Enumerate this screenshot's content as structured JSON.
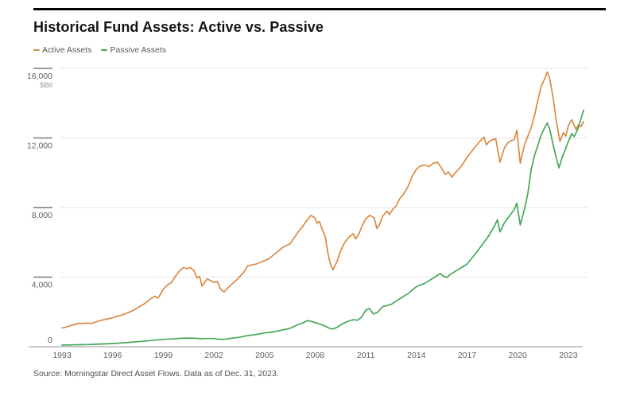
{
  "header": {
    "title": "Historical Fund Assets: Active vs. Passive"
  },
  "legend": {
    "items": [
      {
        "label": "Active Assets",
        "color": "#DB8A43"
      },
      {
        "label": "Passive Assets",
        "color": "#46A758"
      }
    ]
  },
  "footer": {
    "source": "Source: Morningstar Direct Asset Flows. Data as of Dec. 31, 2023."
  },
  "chart_data": {
    "type": "line",
    "title": "Historical Fund Assets: Active vs. Passive",
    "xlabel": "",
    "ylabel": "$Bil",
    "unit_label": "$Bil",
    "ylim": [
      0,
      16000
    ],
    "xlim": [
      1993,
      2024.2
    ],
    "yticks": [
      0,
      4000,
      8000,
      12000,
      16000
    ],
    "ytick_labels": [
      "0",
      "4,000",
      "8,000",
      "12,000",
      "16,000"
    ],
    "xticks": [
      1993,
      1996,
      1999,
      2002,
      2005,
      2008,
      2011,
      2014,
      2017,
      2020,
      2023
    ],
    "xtick_labels": [
      "1993",
      "1996",
      "1999",
      "2002",
      "2005",
      "2008",
      "2011",
      "2014",
      "2017",
      "2020",
      "2023"
    ],
    "grid": "horizontal",
    "legend_position": "top-left",
    "series": [
      {
        "name": "Active Assets",
        "color": "#DB8A43",
        "points": [
          [
            1993.0,
            1080
          ],
          [
            1993.25,
            1130
          ],
          [
            1993.5,
            1210
          ],
          [
            1993.75,
            1280
          ],
          [
            1994.0,
            1350
          ],
          [
            1994.25,
            1330
          ],
          [
            1994.5,
            1360
          ],
          [
            1994.75,
            1340
          ],
          [
            1995.0,
            1420
          ],
          [
            1995.25,
            1500
          ],
          [
            1995.5,
            1560
          ],
          [
            1995.75,
            1610
          ],
          [
            1996.0,
            1660
          ],
          [
            1996.25,
            1750
          ],
          [
            1996.5,
            1800
          ],
          [
            1996.75,
            1890
          ],
          [
            1997.0,
            2000
          ],
          [
            1997.25,
            2100
          ],
          [
            1997.5,
            2250
          ],
          [
            1997.75,
            2380
          ],
          [
            1998.0,
            2550
          ],
          [
            1998.25,
            2750
          ],
          [
            1998.5,
            2900
          ],
          [
            1998.7,
            2800
          ],
          [
            1999.0,
            3300
          ],
          [
            1999.25,
            3550
          ],
          [
            1999.5,
            3700
          ],
          [
            1999.75,
            4100
          ],
          [
            2000.0,
            4400
          ],
          [
            2000.2,
            4550
          ],
          [
            2000.4,
            4480
          ],
          [
            2000.6,
            4550
          ],
          [
            2000.8,
            4400
          ],
          [
            2001.0,
            3950
          ],
          [
            2001.15,
            4050
          ],
          [
            2001.3,
            3480
          ],
          [
            2001.6,
            3900
          ],
          [
            2001.8,
            3800
          ],
          [
            2002.0,
            3700
          ],
          [
            2002.2,
            3750
          ],
          [
            2002.4,
            3300
          ],
          [
            2002.6,
            3150
          ],
          [
            2002.8,
            3350
          ],
          [
            2003.0,
            3550
          ],
          [
            2003.25,
            3750
          ],
          [
            2003.5,
            4000
          ],
          [
            2003.75,
            4250
          ],
          [
            2004.0,
            4650
          ],
          [
            2004.25,
            4700
          ],
          [
            2004.5,
            4750
          ],
          [
            2004.75,
            4850
          ],
          [
            2005.0,
            4950
          ],
          [
            2005.25,
            5050
          ],
          [
            2005.5,
            5250
          ],
          [
            2005.75,
            5450
          ],
          [
            2006.0,
            5650
          ],
          [
            2006.25,
            5800
          ],
          [
            2006.5,
            5900
          ],
          [
            2006.75,
            6250
          ],
          [
            2007.0,
            6600
          ],
          [
            2007.25,
            6900
          ],
          [
            2007.5,
            7250
          ],
          [
            2007.75,
            7550
          ],
          [
            2008.0,
            7400
          ],
          [
            2008.1,
            7100
          ],
          [
            2008.25,
            7200
          ],
          [
            2008.4,
            6800
          ],
          [
            2008.6,
            6300
          ],
          [
            2008.75,
            5400
          ],
          [
            2008.9,
            4750
          ],
          [
            2009.05,
            4420
          ],
          [
            2009.3,
            4900
          ],
          [
            2009.5,
            5500
          ],
          [
            2009.75,
            6000
          ],
          [
            2010.0,
            6300
          ],
          [
            2010.25,
            6500
          ],
          [
            2010.4,
            6200
          ],
          [
            2010.6,
            6500
          ],
          [
            2010.8,
            7000
          ],
          [
            2011.0,
            7350
          ],
          [
            2011.25,
            7550
          ],
          [
            2011.5,
            7400
          ],
          [
            2011.65,
            6800
          ],
          [
            2011.8,
            7000
          ],
          [
            2012.0,
            7500
          ],
          [
            2012.25,
            7800
          ],
          [
            2012.4,
            7600
          ],
          [
            2012.6,
            7900
          ],
          [
            2012.8,
            8100
          ],
          [
            2013.0,
            8500
          ],
          [
            2013.25,
            8800
          ],
          [
            2013.5,
            9200
          ],
          [
            2013.75,
            9800
          ],
          [
            2014.0,
            10200
          ],
          [
            2014.25,
            10400
          ],
          [
            2014.5,
            10450
          ],
          [
            2014.75,
            10350
          ],
          [
            2015.0,
            10550
          ],
          [
            2015.25,
            10600
          ],
          [
            2015.5,
            10250
          ],
          [
            2015.7,
            9900
          ],
          [
            2015.9,
            10050
          ],
          [
            2016.1,
            9750
          ],
          [
            2016.3,
            10000
          ],
          [
            2016.5,
            10200
          ],
          [
            2016.75,
            10500
          ],
          [
            2017.0,
            10900
          ],
          [
            2017.25,
            11200
          ],
          [
            2017.5,
            11500
          ],
          [
            2017.75,
            11800
          ],
          [
            2018.0,
            12050
          ],
          [
            2018.15,
            11600
          ],
          [
            2018.3,
            11800
          ],
          [
            2018.5,
            11900
          ],
          [
            2018.7,
            11950
          ],
          [
            2018.95,
            10600
          ],
          [
            2019.2,
            11400
          ],
          [
            2019.4,
            11700
          ],
          [
            2019.6,
            11850
          ],
          [
            2019.8,
            11900
          ],
          [
            2019.95,
            12450
          ],
          [
            2020.15,
            10550
          ],
          [
            2020.4,
            11600
          ],
          [
            2020.6,
            12100
          ],
          [
            2020.8,
            12600
          ],
          [
            2021.0,
            13300
          ],
          [
            2021.2,
            14200
          ],
          [
            2021.4,
            15000
          ],
          [
            2021.6,
            15400
          ],
          [
            2021.75,
            15800
          ],
          [
            2021.9,
            15400
          ],
          [
            2022.1,
            14300
          ],
          [
            2022.3,
            12900
          ],
          [
            2022.5,
            11800
          ],
          [
            2022.7,
            12300
          ],
          [
            2022.85,
            12100
          ],
          [
            2023.0,
            12700
          ],
          [
            2023.2,
            13050
          ],
          [
            2023.45,
            12500
          ],
          [
            2023.6,
            12750
          ],
          [
            2023.75,
            12650
          ],
          [
            2023.9,
            12950
          ]
        ]
      },
      {
        "name": "Passive Assets",
        "color": "#46A758",
        "points": [
          [
            1993.0,
            90
          ],
          [
            1993.5,
            100
          ],
          [
            1994.0,
            115
          ],
          [
            1994.5,
            125
          ],
          [
            1995.0,
            140
          ],
          [
            1995.5,
            160
          ],
          [
            1996.0,
            185
          ],
          [
            1996.5,
            210
          ],
          [
            1997.0,
            250
          ],
          [
            1997.5,
            290
          ],
          [
            1998.0,
            330
          ],
          [
            1998.5,
            380
          ],
          [
            1999.0,
            420
          ],
          [
            1999.5,
            450
          ],
          [
            2000.0,
            480
          ],
          [
            2000.5,
            500
          ],
          [
            2001.0,
            480
          ],
          [
            2001.3,
            450
          ],
          [
            2001.6,
            470
          ],
          [
            2002.0,
            470
          ],
          [
            2002.3,
            430
          ],
          [
            2002.6,
            420
          ],
          [
            2003.0,
            480
          ],
          [
            2003.5,
            540
          ],
          [
            2004.0,
            640
          ],
          [
            2004.5,
            700
          ],
          [
            2005.0,
            790
          ],
          [
            2005.5,
            850
          ],
          [
            2006.0,
            950
          ],
          [
            2006.5,
            1050
          ],
          [
            2007.0,
            1280
          ],
          [
            2007.3,
            1380
          ],
          [
            2007.55,
            1500
          ],
          [
            2007.8,
            1450
          ],
          [
            2008.0,
            1380
          ],
          [
            2008.3,
            1300
          ],
          [
            2008.6,
            1180
          ],
          [
            2008.8,
            1080
          ],
          [
            2009.05,
            1010
          ],
          [
            2009.3,
            1120
          ],
          [
            2009.5,
            1250
          ],
          [
            2009.75,
            1380
          ],
          [
            2010.0,
            1480
          ],
          [
            2010.3,
            1560
          ],
          [
            2010.5,
            1520
          ],
          [
            2010.75,
            1700
          ],
          [
            2011.0,
            2100
          ],
          [
            2011.2,
            2200
          ],
          [
            2011.45,
            1880
          ],
          [
            2011.7,
            1980
          ],
          [
            2012.0,
            2300
          ],
          [
            2012.5,
            2430
          ],
          [
            2013.0,
            2750
          ],
          [
            2013.5,
            3050
          ],
          [
            2014.0,
            3450
          ],
          [
            2014.5,
            3650
          ],
          [
            2015.0,
            3950
          ],
          [
            2015.4,
            4200
          ],
          [
            2015.6,
            4050
          ],
          [
            2015.8,
            3980
          ],
          [
            2016.0,
            4150
          ],
          [
            2016.5,
            4450
          ],
          [
            2017.0,
            4750
          ],
          [
            2017.5,
            5350
          ],
          [
            2018.0,
            6000
          ],
          [
            2018.3,
            6400
          ],
          [
            2018.6,
            6900
          ],
          [
            2018.8,
            7300
          ],
          [
            2018.95,
            6600
          ],
          [
            2019.2,
            7100
          ],
          [
            2019.5,
            7500
          ],
          [
            2019.8,
            7900
          ],
          [
            2019.95,
            8250
          ],
          [
            2020.15,
            7000
          ],
          [
            2020.4,
            7900
          ],
          [
            2020.6,
            8800
          ],
          [
            2020.8,
            10200
          ],
          [
            2021.0,
            11000
          ],
          [
            2021.2,
            11600
          ],
          [
            2021.4,
            12200
          ],
          [
            2021.6,
            12600
          ],
          [
            2021.75,
            12870
          ],
          [
            2021.9,
            12500
          ],
          [
            2022.1,
            11600
          ],
          [
            2022.3,
            10800
          ],
          [
            2022.45,
            10280
          ],
          [
            2022.6,
            10800
          ],
          [
            2022.8,
            11300
          ],
          [
            2023.0,
            11800
          ],
          [
            2023.2,
            12250
          ],
          [
            2023.35,
            12080
          ],
          [
            2023.6,
            12600
          ],
          [
            2023.9,
            13600
          ]
        ]
      }
    ]
  },
  "layout_colors": {
    "grid_line": "#e4e4e4",
    "axis_line": "#a6a6a6",
    "tick_stub": "#8c8c8c",
    "tick_label": "#606060",
    "unit_label": "#a0a0a0",
    "top_rule": "#000000"
  }
}
